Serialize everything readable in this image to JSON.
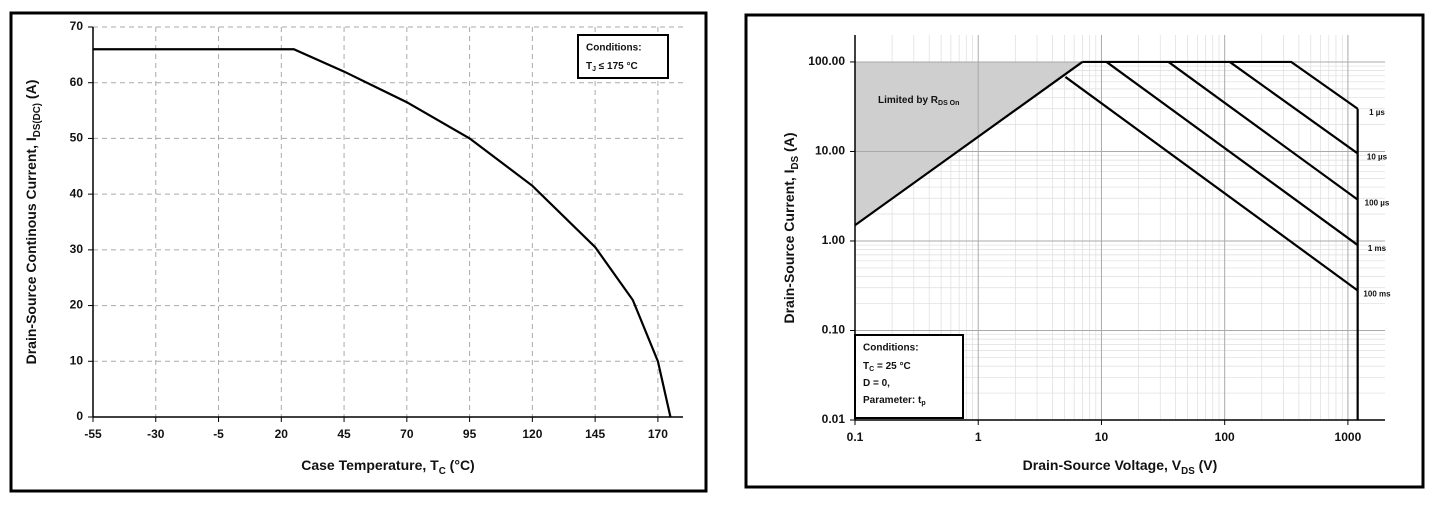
{
  "chart_data": [
    {
      "type": "line",
      "xlabel": [
        "Case Temperature, T",
        "C",
        " (°C)"
      ],
      "ylabel": [
        "Drain-Source Continous Current, I",
        "DS(DC)",
        " (A)"
      ],
      "x": [
        -55,
        25,
        45,
        70,
        95,
        120,
        145,
        160,
        170,
        175
      ],
      "values": [
        66,
        66,
        62,
        56.5,
        50,
        41.5,
        30.5,
        21,
        10,
        0
      ],
      "color": "#000000",
      "xlim": [
        -55,
        180
      ],
      "xticks": [
        -55,
        -30,
        -5,
        20,
        45,
        70,
        95,
        120,
        145,
        170
      ],
      "ylim": [
        0,
        70
      ],
      "yticks": [
        0,
        10,
        20,
        30,
        40,
        50,
        60,
        70
      ],
      "grid": "dashed",
      "annotation": {
        "title": "Conditions:",
        "lines": [
          [
            "T",
            "J",
            " ≤ 175 °C"
          ]
        ]
      }
    },
    {
      "type": "line",
      "xscale": "log",
      "yscale": "log",
      "xlabel": [
        "Drain-Source Voltage, V",
        "DS",
        " (V)"
      ],
      "ylabel": [
        "Drain-Source Current, I",
        "DS",
        " (A)"
      ],
      "series": [
        {
          "color": "#000000",
          "x": [
            0.1,
            7
          ],
          "values": [
            1.5,
            100
          ]
        },
        {
          "name": "1 µs",
          "color": "#000000",
          "x": [
            7,
            347,
            1200
          ],
          "values": [
            100,
            100,
            30
          ]
        },
        {
          "name": "10 µs",
          "color": "#000000",
          "x": [
            110,
            1200
          ],
          "values": [
            100,
            9.5
          ]
        },
        {
          "name": "100 µs",
          "color": "#000000",
          "x": [
            35,
            1200
          ],
          "values": [
            100,
            2.9
          ]
        },
        {
          "name": "1 ms",
          "color": "#000000",
          "x": [
            11,
            1200
          ],
          "values": [
            100,
            0.9
          ]
        },
        {
          "name": "100 ms",
          "color": "#000000",
          "x": [
            5.1,
            1200
          ],
          "values": [
            68,
            0.28
          ]
        },
        {
          "color": "#000000",
          "x": [
            1200,
            1200
          ],
          "values": [
            0.01,
            30
          ]
        }
      ],
      "xlim": [
        0.1,
        2000
      ],
      "xticks": [
        0.1,
        1,
        10,
        100,
        1000
      ],
      "ylim": [
        0.01,
        200
      ],
      "yticks": [
        {
          "value": 0.01,
          "label": "0.01"
        },
        {
          "value": 0.1,
          "label": "0.10"
        },
        {
          "value": 1,
          "label": "1.00"
        },
        {
          "value": 10,
          "label": "10.00"
        },
        {
          "value": 100,
          "label": "100.00"
        }
      ],
      "grid": "solid",
      "minor_grid": true,
      "region_label": [
        "Limited by R",
        "DS On"
      ],
      "annotation": {
        "title": "Conditions:",
        "lines": [
          [
            "T",
            "C",
            " = 25 °C"
          ],
          [
            "D = 0,"
          ],
          [
            "Parameter: t",
            "p"
          ]
        ]
      }
    }
  ]
}
